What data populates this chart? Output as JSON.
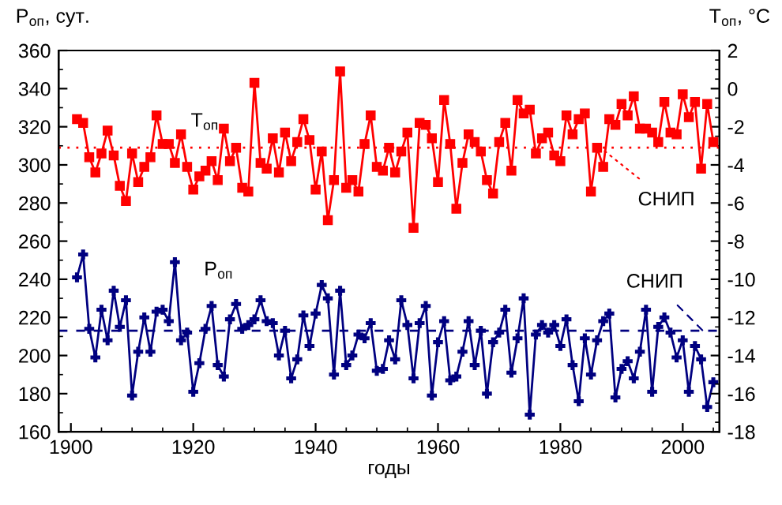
{
  "chart_data": {
    "type": "line",
    "ylabel": "P$_{оп}$, сут.",
    "y2label": "T$_{оп}$, °C",
    "xlabel": "годы",
    "xlim": [
      1898,
      2006
    ],
    "xticks": [
      1900,
      1920,
      1940,
      1960,
      1980,
      2000
    ],
    "ylim": [
      160,
      360
    ],
    "yticks": [
      160,
      180,
      200,
      220,
      240,
      260,
      280,
      300,
      320,
      340,
      360
    ],
    "y2lim": [
      -18,
      2
    ],
    "y2ticks": [
      -18,
      -16,
      -14,
      -12,
      -10,
      -8,
      -6,
      -4,
      -2,
      0,
      2
    ],
    "x": [
      1901,
      1902,
      1903,
      1904,
      1905,
      1906,
      1907,
      1908,
      1909,
      1910,
      1911,
      1912,
      1913,
      1914,
      1915,
      1916,
      1917,
      1918,
      1919,
      1920,
      1921,
      1922,
      1923,
      1924,
      1925,
      1926,
      1927,
      1928,
      1929,
      1930,
      1931,
      1932,
      1933,
      1934,
      1935,
      1936,
      1937,
      1938,
      1939,
      1940,
      1941,
      1942,
      1943,
      1944,
      1945,
      1946,
      1947,
      1948,
      1949,
      1950,
      1951,
      1952,
      1953,
      1954,
      1955,
      1956,
      1957,
      1958,
      1959,
      1960,
      1961,
      1962,
      1963,
      1964,
      1965,
      1966,
      1967,
      1968,
      1969,
      1970,
      1971,
      1972,
      1973,
      1974,
      1975,
      1976,
      1977,
      1978,
      1979,
      1980,
      1981,
      1982,
      1983,
      1984,
      1985,
      1986,
      1987,
      1988,
      1989,
      1990,
      1991,
      1992,
      1993,
      1994,
      1995,
      1996,
      1997,
      1998,
      1999,
      2000,
      2001,
      2002,
      2003,
      2004,
      2005
    ],
    "series": [
      {
        "name": "T$_{оп}$",
        "color": "#ff0000",
        "axis": "y2",
        "marker": "square",
        "values": [
          -1.6,
          -1.8,
          -3.6,
          -4.4,
          -3.4,
          -2.2,
          -3.5,
          -5.1,
          -5.9,
          -3.4,
          -4.9,
          -4.1,
          -3.6,
          -1.4,
          -2.9,
          -2.9,
          -3.9,
          -2.4,
          -4.1,
          -5.3,
          -4.6,
          -4.3,
          -3.8,
          -4.8,
          -2.1,
          -3.8,
          -3.1,
          -5.2,
          -5.4,
          0.3,
          -3.9,
          -4.2,
          -2.6,
          -4.4,
          -2.3,
          -3.8,
          -2.8,
          -1.6,
          -2.7,
          -5.3,
          -3.3,
          -6.9,
          -4.8,
          0.9,
          -5.2,
          -4.8,
          -5.4,
          -2.9,
          -1.4,
          -4.1,
          -4.3,
          -3.1,
          -4.4,
          -3.3,
          -2.3,
          -7.3,
          -1.8,
          -1.9,
          -2.6,
          -4.9,
          -0.6,
          -2.9,
          -6.3,
          -3.9,
          -2.4,
          -2.8,
          -3.3,
          -4.8,
          -5.5,
          -2.8,
          -1.8,
          -4.3,
          -0.6,
          -1.3,
          -1.1,
          -3.4,
          -2.6,
          -2.3,
          -3.5,
          -3.8,
          -1.4,
          -2.4,
          -1.6,
          -1.3,
          -5.4,
          -3.1,
          -4.1,
          -1.6,
          -1.9,
          -0.8,
          -1.4,
          -0.4,
          -2.1,
          -2.1,
          -2.3,
          -2.8,
          -0.7,
          -2.3,
          -2.4,
          -0.3,
          -1.5,
          -0.7,
          -4.2,
          -0.8,
          -2.8
        ]
      },
      {
        "name": "P$_{оп}$",
        "color": "#000080",
        "axis": "y",
        "marker": "cross",
        "values": [
          241,
          253,
          214,
          199,
          224,
          208,
          234,
          215,
          229,
          179,
          202,
          220,
          202,
          223,
          224,
          218,
          249,
          208,
          212,
          181,
          196,
          214,
          226,
          195,
          189,
          219,
          227,
          214,
          216,
          219,
          229,
          218,
          217,
          200,
          213,
          188,
          198,
          221,
          205,
          222,
          237,
          230,
          190,
          234,
          195,
          200,
          211,
          209,
          217,
          192,
          193,
          208,
          198,
          229,
          216,
          188,
          217,
          226,
          179,
          207,
          218,
          187,
          189,
          202,
          218,
          195,
          213,
          180,
          207,
          212,
          224,
          191,
          209,
          230,
          169,
          211,
          216,
          212,
          216,
          205,
          219,
          195,
          176,
          209,
          190,
          208,
          218,
          222,
          178,
          193,
          197,
          188,
          202,
          224,
          181,
          215,
          220,
          212,
          199,
          208,
          181,
          205,
          198,
          173,
          186
        ]
      }
    ],
    "ref_lines": [
      {
        "axis": "y2",
        "value": -3.1,
        "label": "СНИП",
        "color": "#ff0000",
        "line_style": "dotted"
      },
      {
        "axis": "y",
        "value": 213,
        "label": "СНИП",
        "color": "#000080",
        "line_style": "dashed"
      }
    ]
  }
}
